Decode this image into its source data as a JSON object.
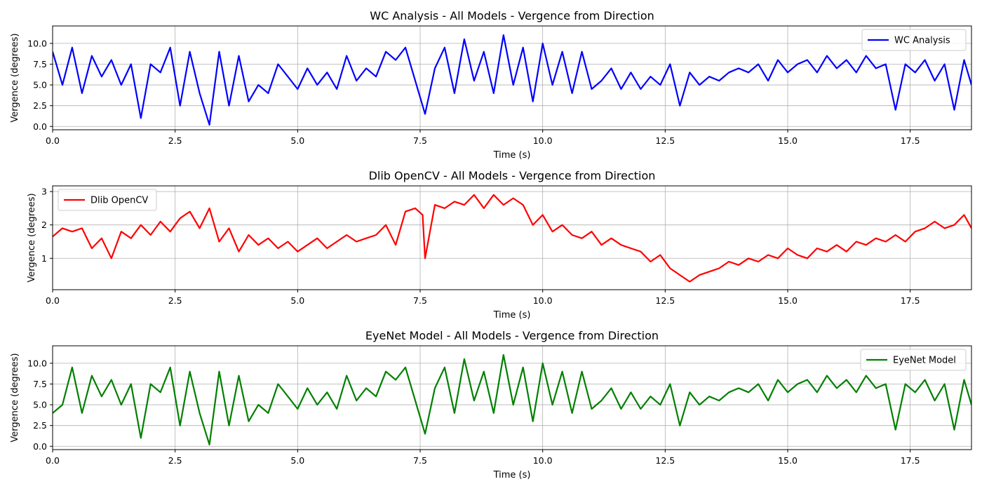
{
  "chart_data": [
    {
      "type": "line",
      "title": "WC Analysis - All Models - Vergence from Direction",
      "xlabel": "Time (s)",
      "ylabel": "Vergence (degrees)",
      "xlim": [
        0,
        18.75
      ],
      "ylim": [
        -0.4,
        12.1
      ],
      "xticks": [
        0,
        2.5,
        5,
        7.5,
        10,
        12.5,
        15,
        17.5
      ],
      "xtick_labels": [
        "0.0",
        "2.5",
        "5.0",
        "7.5",
        "10.0",
        "12.5",
        "15.0",
        "17.5"
      ],
      "yticks": [
        0,
        2.5,
        5,
        7.5,
        10
      ],
      "ytick_labels": [
        "0.0",
        "2.5",
        "5.0",
        "7.5",
        "10.0"
      ],
      "grid": true,
      "legend_position": "top-right",
      "series": [
        {
          "name": "WC Analysis",
          "color": "#0000ff",
          "x": [
            0.0,
            0.2,
            0.4,
            0.6,
            0.8,
            1.0,
            1.2,
            1.4,
            1.6,
            1.8,
            2.0,
            2.2,
            2.4,
            2.6,
            2.8,
            3.0,
            3.2,
            3.4,
            3.6,
            3.8,
            4.0,
            4.2,
            4.4,
            4.6,
            4.8,
            5.0,
            5.2,
            5.4,
            5.6,
            5.8,
            6.0,
            6.2,
            6.4,
            6.6,
            6.8,
            7.0,
            7.2,
            7.4,
            7.6,
            7.8,
            8.0,
            8.2,
            8.4,
            8.6,
            8.8,
            9.0,
            9.2,
            9.4,
            9.6,
            9.8,
            10.0,
            10.2,
            10.4,
            10.6,
            10.8,
            11.0,
            11.2,
            11.4,
            11.6,
            11.8,
            12.0,
            12.2,
            12.4,
            12.6,
            12.8,
            13.0,
            13.2,
            13.4,
            13.6,
            13.8,
            14.0,
            14.2,
            14.4,
            14.6,
            14.8,
            15.0,
            15.2,
            15.4,
            15.6,
            15.8,
            16.0,
            16.2,
            16.4,
            16.6,
            16.8,
            17.0,
            17.2,
            17.4,
            17.6,
            17.8,
            18.0,
            18.2,
            18.4,
            18.6,
            18.75
          ],
          "y": [
            9.0,
            5.0,
            9.5,
            4.0,
            8.5,
            6.0,
            8.0,
            5.0,
            7.5,
            1.0,
            7.5,
            6.5,
            9.5,
            2.5,
            9.0,
            4.0,
            0.2,
            9.0,
            2.5,
            8.5,
            3.0,
            5.0,
            4.0,
            7.5,
            6.0,
            4.5,
            7.0,
            5.0,
            6.5,
            4.5,
            8.5,
            5.5,
            7.0,
            6.0,
            9.0,
            8.0,
            9.5,
            5.5,
            1.5,
            7.0,
            9.5,
            4.0,
            10.5,
            5.5,
            9.0,
            4.0,
            11.0,
            5.0,
            9.5,
            3.0,
            10.0,
            5.0,
            9.0,
            4.0,
            9.0,
            4.5,
            5.5,
            7.0,
            4.5,
            6.5,
            4.5,
            6.0,
            5.0,
            7.5,
            2.5,
            6.5,
            5.0,
            6.0,
            5.5,
            6.5,
            7.0,
            6.5,
            7.5,
            5.5,
            8.0,
            6.5,
            7.5,
            8.0,
            6.5,
            8.5,
            7.0,
            8.0,
            6.5,
            8.5,
            7.0,
            7.5,
            2.0,
            7.5,
            6.5,
            8.0,
            5.5,
            7.5,
            2.0,
            8.0,
            5.0
          ]
        }
      ]
    },
    {
      "type": "line",
      "title": "Dlib OpenCV - All Models - Vergence from Direction",
      "xlabel": "Time (s)",
      "ylabel": "Vergence (degrees)",
      "xlim": [
        0,
        18.75
      ],
      "ylim": [
        0.06,
        3.17
      ],
      "xticks": [
        0,
        2.5,
        5,
        7.5,
        10,
        12.5,
        15,
        17.5
      ],
      "xtick_labels": [
        "0.0",
        "2.5",
        "5.0",
        "7.5",
        "10.0",
        "12.5",
        "15.0",
        "17.5"
      ],
      "yticks": [
        1,
        2,
        3
      ],
      "ytick_labels": [
        "1",
        "2",
        "3"
      ],
      "grid": true,
      "legend_position": "top-left",
      "series": [
        {
          "name": "Dlib OpenCV",
          "color": "#ff0000",
          "x": [
            0.0,
            0.2,
            0.4,
            0.6,
            0.8,
            1.0,
            1.2,
            1.4,
            1.6,
            1.8,
            2.0,
            2.2,
            2.4,
            2.6,
            2.8,
            3.0,
            3.2,
            3.4,
            3.6,
            3.8,
            4.0,
            4.2,
            4.4,
            4.6,
            4.8,
            5.0,
            5.2,
            5.4,
            5.6,
            5.8,
            6.0,
            6.2,
            6.4,
            6.6,
            6.8,
            7.0,
            7.2,
            7.4,
            7.55,
            7.6,
            7.8,
            8.0,
            8.2,
            8.4,
            8.6,
            8.8,
            9.0,
            9.2,
            9.4,
            9.6,
            9.8,
            10.0,
            10.2,
            10.4,
            10.6,
            10.8,
            11.0,
            11.2,
            11.4,
            11.6,
            11.8,
            12.0,
            12.2,
            12.4,
            12.6,
            12.8,
            13.0,
            13.2,
            13.4,
            13.6,
            13.8,
            14.0,
            14.2,
            14.4,
            14.6,
            14.8,
            15.0,
            15.2,
            15.4,
            15.6,
            15.8,
            16.0,
            16.2,
            16.4,
            16.6,
            16.8,
            17.0,
            17.2,
            17.4,
            17.6,
            17.8,
            18.0,
            18.2,
            18.4,
            18.6,
            18.75
          ],
          "y": [
            1.65,
            1.9,
            1.8,
            1.9,
            1.3,
            1.6,
            1.0,
            1.8,
            1.6,
            2.0,
            1.7,
            2.1,
            1.8,
            2.2,
            2.4,
            1.9,
            2.5,
            1.5,
            1.9,
            1.2,
            1.7,
            1.4,
            1.6,
            1.3,
            1.5,
            1.2,
            1.4,
            1.6,
            1.3,
            1.5,
            1.7,
            1.5,
            1.6,
            1.7,
            2.0,
            1.4,
            2.4,
            2.5,
            2.3,
            1.0,
            2.6,
            2.5,
            2.7,
            2.6,
            2.9,
            2.5,
            2.9,
            2.6,
            2.8,
            2.6,
            2.0,
            2.3,
            1.8,
            2.0,
            1.7,
            1.6,
            1.8,
            1.4,
            1.6,
            1.4,
            1.3,
            1.2,
            0.9,
            1.1,
            0.7,
            0.5,
            0.3,
            0.5,
            0.6,
            0.7,
            0.9,
            0.8,
            1.0,
            0.9,
            1.1,
            1.0,
            1.3,
            1.1,
            1.0,
            1.3,
            1.2,
            1.4,
            1.2,
            1.5,
            1.4,
            1.6,
            1.5,
            1.7,
            1.5,
            1.8,
            1.9,
            2.1,
            1.9,
            2.0,
            2.3,
            1.9
          ]
        }
      ]
    },
    {
      "type": "line",
      "title": "EyeNet Model - All Models - Vergence from Direction",
      "xlabel": "Time (s)",
      "ylabel": "Vergence (degrees)",
      "xlim": [
        0,
        18.75
      ],
      "ylim": [
        -0.4,
        12.1
      ],
      "xticks": [
        0,
        2.5,
        5,
        7.5,
        10,
        12.5,
        15,
        17.5
      ],
      "xtick_labels": [
        "0.0",
        "2.5",
        "5.0",
        "7.5",
        "10.0",
        "12.5",
        "15.0",
        "17.5"
      ],
      "yticks": [
        0,
        2.5,
        5,
        7.5,
        10
      ],
      "ytick_labels": [
        "0.0",
        "2.5",
        "5.0",
        "7.5",
        "10.0"
      ],
      "grid": true,
      "legend_position": "top-right",
      "series": [
        {
          "name": "EyeNet Model",
          "color": "#008000",
          "x": [
            0.0,
            0.2,
            0.4,
            0.6,
            0.8,
            1.0,
            1.2,
            1.4,
            1.6,
            1.8,
            2.0,
            2.2,
            2.4,
            2.6,
            2.8,
            3.0,
            3.2,
            3.4,
            3.6,
            3.8,
            4.0,
            4.2,
            4.4,
            4.6,
            4.8,
            5.0,
            5.2,
            5.4,
            5.6,
            5.8,
            6.0,
            6.2,
            6.4,
            6.6,
            6.8,
            7.0,
            7.2,
            7.4,
            7.6,
            7.8,
            8.0,
            8.2,
            8.4,
            8.6,
            8.8,
            9.0,
            9.2,
            9.4,
            9.6,
            9.8,
            10.0,
            10.2,
            10.4,
            10.6,
            10.8,
            11.0,
            11.2,
            11.4,
            11.6,
            11.8,
            12.0,
            12.2,
            12.4,
            12.6,
            12.8,
            13.0,
            13.2,
            13.4,
            13.6,
            13.8,
            14.0,
            14.2,
            14.4,
            14.6,
            14.8,
            15.0,
            15.2,
            15.4,
            15.6,
            15.8,
            16.0,
            16.2,
            16.4,
            16.6,
            16.8,
            17.0,
            17.2,
            17.4,
            17.6,
            17.8,
            18.0,
            18.2,
            18.4,
            18.6,
            18.75
          ],
          "y": [
            4.0,
            5.0,
            9.5,
            4.0,
            8.5,
            6.0,
            8.0,
            5.0,
            7.5,
            1.0,
            7.5,
            6.5,
            9.5,
            2.5,
            9.0,
            4.0,
            0.2,
            9.0,
            2.5,
            8.5,
            3.0,
            5.0,
            4.0,
            7.5,
            6.0,
            4.5,
            7.0,
            5.0,
            6.5,
            4.5,
            8.5,
            5.5,
            7.0,
            6.0,
            9.0,
            8.0,
            9.5,
            5.5,
            1.5,
            7.0,
            9.5,
            4.0,
            10.5,
            5.5,
            9.0,
            4.0,
            11.0,
            5.0,
            9.5,
            3.0,
            10.0,
            5.0,
            9.0,
            4.0,
            9.0,
            4.5,
            5.5,
            7.0,
            4.5,
            6.5,
            4.5,
            6.0,
            5.0,
            7.5,
            2.5,
            6.5,
            5.0,
            6.0,
            5.5,
            6.5,
            7.0,
            6.5,
            7.5,
            5.5,
            8.0,
            6.5,
            7.5,
            8.0,
            6.5,
            8.5,
            7.0,
            8.0,
            6.5,
            8.5,
            7.0,
            7.5,
            2.0,
            7.5,
            6.5,
            8.0,
            5.5,
            7.5,
            2.0,
            8.0,
            5.0
          ]
        }
      ]
    }
  ]
}
